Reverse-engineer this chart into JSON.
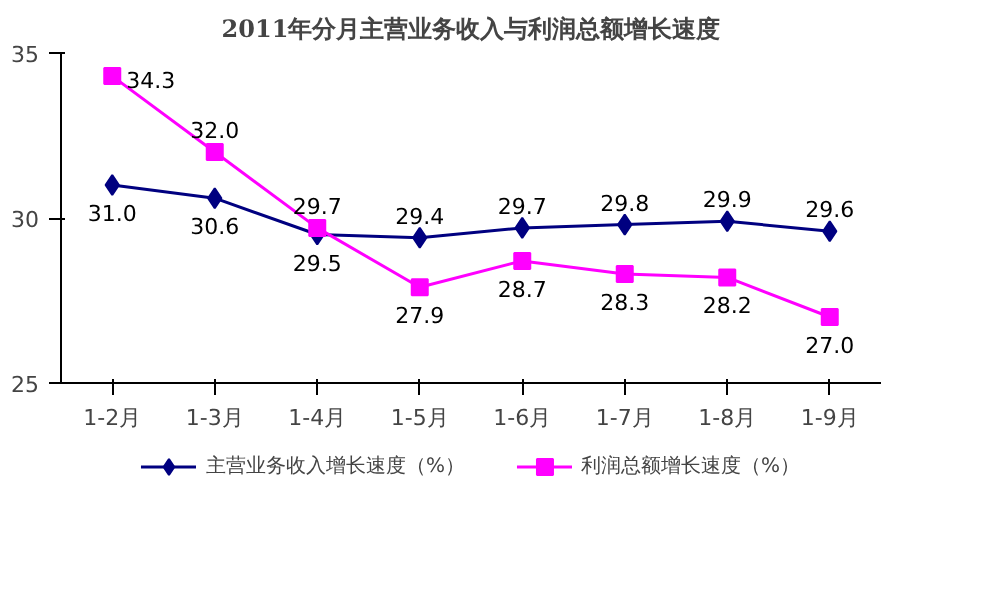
{
  "chart_data": {
    "type": "line",
    "title": "2011年分月主营业务收入与利润总额增长速度",
    "categories": [
      "1-2月",
      "1-3月",
      "1-4月",
      "1-5月",
      "1-6月",
      "1-7月",
      "1-8月",
      "1-9月"
    ],
    "series": [
      {
        "name": "主营业务收入增长速度（%）",
        "color": "#000080",
        "marker": "diamond",
        "values": [
          31.0,
          30.6,
          29.5,
          29.4,
          29.7,
          29.8,
          29.9,
          29.6
        ],
        "value_labels": [
          "31.0",
          "30.6",
          "29.5",
          "29.4",
          "29.7",
          "29.8",
          "29.9",
          "29.6"
        ]
      },
      {
        "name": "利润总额增长速度（%）",
        "color": "#ff00ff",
        "marker": "square",
        "values": [
          34.3,
          32.0,
          29.7,
          27.9,
          28.7,
          28.3,
          28.2,
          27.0
        ],
        "value_labels": [
          "34.3",
          "32.0",
          "29.7",
          "27.9",
          "28.7",
          "28.3",
          "28.2",
          "27.0"
        ]
      }
    ],
    "ylim": [
      25,
      35
    ],
    "yticks": [
      25,
      30,
      35
    ],
    "legend": "bottom"
  }
}
